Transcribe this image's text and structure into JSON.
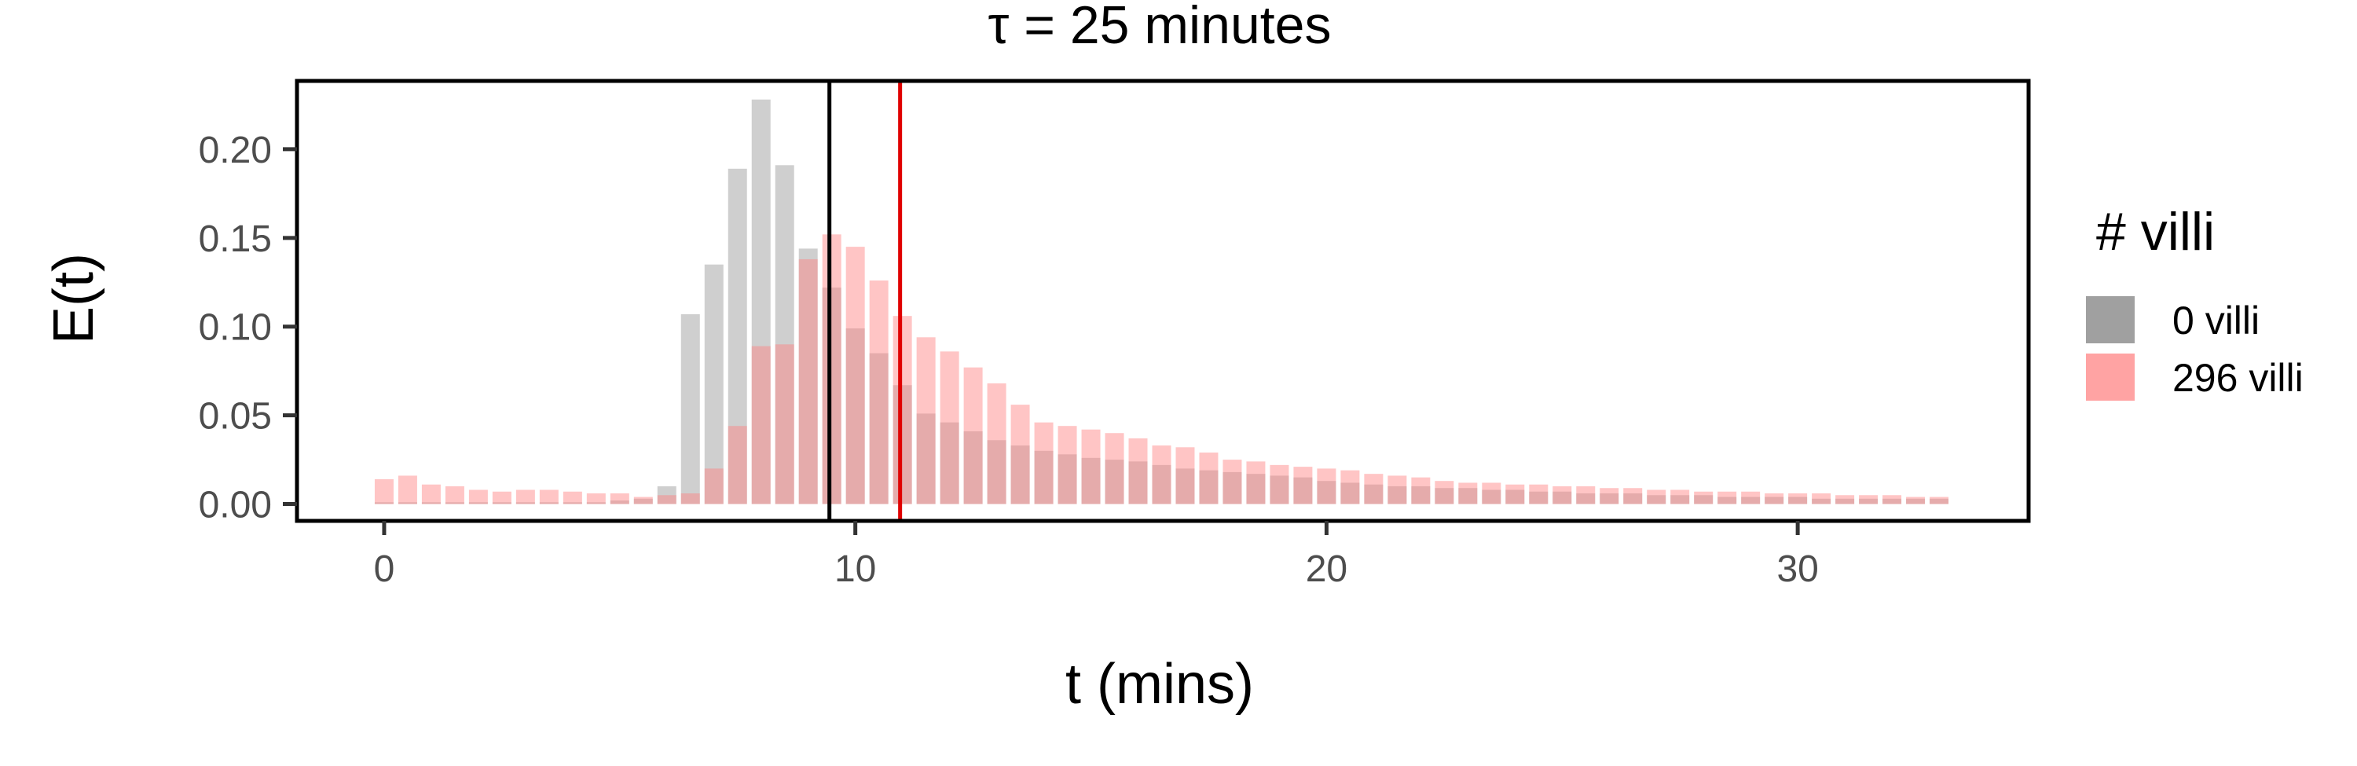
{
  "chart_data": {
    "type": "bar",
    "title": "τ = 25 minutes",
    "xlabel": "t (mins)",
    "ylabel": "E(t)",
    "xlim": [
      -1.85,
      34.9
    ],
    "ylim": [
      -0.0095,
      0.2385
    ],
    "x_ticks": [
      0,
      10,
      20,
      30
    ],
    "x_tick_labels": [
      "0",
      "10",
      "20",
      "30"
    ],
    "y_ticks": [
      0.0,
      0.05,
      0.1,
      0.15,
      0.2
    ],
    "y_tick_labels": [
      "0.00",
      "0.05",
      "0.10",
      "0.15",
      "0.20"
    ],
    "grid": false,
    "bar_width": 0.4,
    "x": [
      0.0,
      0.5,
      1.0,
      1.5,
      2.0,
      2.5,
      3.0,
      3.5,
      4.0,
      4.5,
      5.0,
      5.5,
      6.0,
      6.5,
      7.0,
      7.5,
      8.0,
      8.5,
      9.0,
      9.5,
      10.0,
      10.5,
      11.0,
      11.5,
      12.0,
      12.5,
      13.0,
      13.5,
      14.0,
      14.5,
      15.0,
      15.5,
      16.0,
      16.5,
      17.0,
      17.5,
      18.0,
      18.5,
      19.0,
      19.5,
      20.0,
      20.5,
      21.0,
      21.5,
      22.0,
      22.5,
      23.0,
      23.5,
      24.0,
      24.5,
      25.0,
      25.5,
      26.0,
      26.5,
      27.0,
      27.5,
      28.0,
      28.5,
      29.0,
      29.5,
      30.0,
      30.5,
      31.0,
      31.5,
      32.0,
      32.5,
      33.0
    ],
    "series": [
      {
        "name": "0 villi",
        "color": "#a0a0a0",
        "opacity": 0.5,
        "values": [
          0.001,
          0.001,
          0.001,
          0.001,
          0.001,
          0.001,
          0.001,
          0.001,
          0.001,
          0.001,
          0.002,
          0.003,
          0.01,
          0.107,
          0.135,
          0.189,
          0.228,
          0.191,
          0.144,
          0.122,
          0.099,
          0.085,
          0.067,
          0.051,
          0.046,
          0.041,
          0.036,
          0.033,
          0.03,
          0.028,
          0.026,
          0.025,
          0.024,
          0.022,
          0.02,
          0.019,
          0.018,
          0.017,
          0.016,
          0.015,
          0.013,
          0.012,
          0.011,
          0.01,
          0.01,
          0.009,
          0.009,
          0.008,
          0.008,
          0.007,
          0.007,
          0.006,
          0.006,
          0.006,
          0.005,
          0.005,
          0.005,
          0.004,
          0.004,
          0.004,
          0.004,
          0.003,
          0.003,
          0.003,
          0.003,
          0.003,
          0.003
        ]
      },
      {
        "name": "296 villi",
        "color": "#ff7f7f",
        "opacity": 0.45,
        "values": [
          0.014,
          0.016,
          0.011,
          0.01,
          0.008,
          0.007,
          0.008,
          0.008,
          0.007,
          0.006,
          0.006,
          0.004,
          0.005,
          0.006,
          0.02,
          0.044,
          0.089,
          0.09,
          0.138,
          0.152,
          0.145,
          0.126,
          0.106,
          0.094,
          0.086,
          0.077,
          0.068,
          0.056,
          0.046,
          0.044,
          0.042,
          0.04,
          0.037,
          0.033,
          0.032,
          0.029,
          0.025,
          0.024,
          0.022,
          0.021,
          0.02,
          0.019,
          0.017,
          0.016,
          0.015,
          0.013,
          0.012,
          0.012,
          0.011,
          0.011,
          0.01,
          0.01,
          0.009,
          0.009,
          0.008,
          0.008,
          0.007,
          0.007,
          0.007,
          0.006,
          0.006,
          0.006,
          0.005,
          0.005,
          0.005,
          0.004,
          0.004
        ]
      }
    ],
    "vlines": [
      {
        "x": 9.45,
        "color": "#000000"
      },
      {
        "x": 10.95,
        "color": "#e00000"
      }
    ],
    "legend": {
      "title": "# villi",
      "placement": "right",
      "items": [
        {
          "label": "0 villi",
          "color": "#a0a0a0"
        },
        {
          "label": "296 villi",
          "color": "#ffa3a3"
        }
      ]
    }
  }
}
